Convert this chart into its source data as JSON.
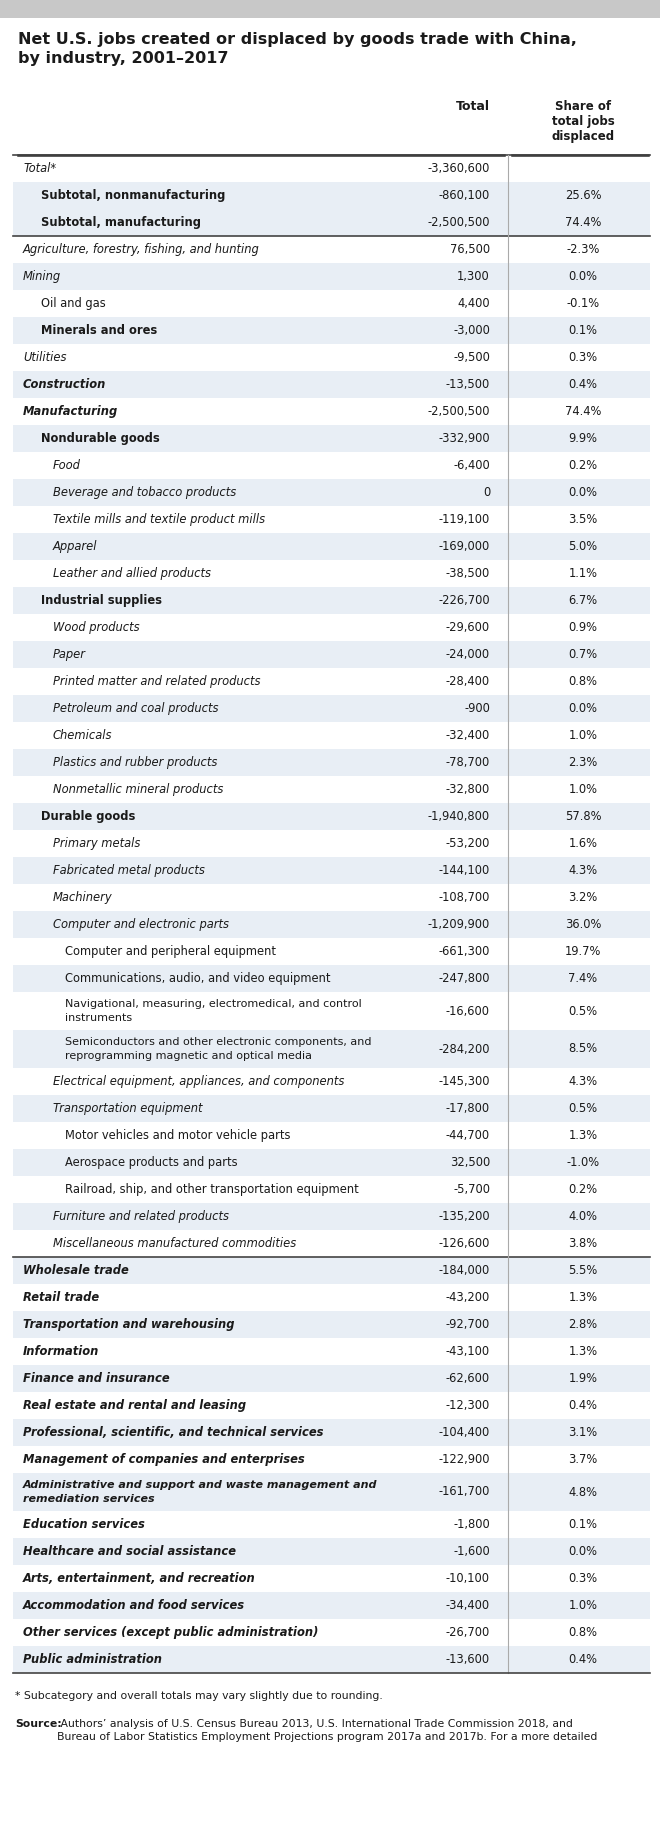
{
  "title": "Net U.S. jobs created or displaced by goods trade with China,\nby industry, 2001–2017",
  "col_total": "Total",
  "col_share": "Share of\ntotal jobs\ndisplaced",
  "footnote1": "* Subcategory and overall totals may vary slightly due to rounding.",
  "footnote2_bold": "Source:",
  "footnote2_rest": " Authors’ analysis of U.S. Census Bureau 2013, U.S. International Trade Commission 2018, and\nBureau of Labor Statistics Employment Projections program 2017a and 2017b. For a more detailed",
  "gray_bar_color": "#c8c8c8",
  "bg_white": "#ffffff",
  "bg_light_blue": "#e8eef5",
  "text_dark": "#1a1a1a",
  "rows": [
    {
      "label": "Total*",
      "total": "-3,360,600",
      "share": "",
      "indent": 0,
      "italic": true,
      "bold": false,
      "bg": "white",
      "border_top": true,
      "border_bottom": false
    },
    {
      "label": "Subtotal, nonmanufacturing",
      "total": "-860,100",
      "share": "25.6%",
      "indent": 1,
      "italic": false,
      "bold": true,
      "bg": "blue",
      "border_top": false,
      "border_bottom": false
    },
    {
      "label": "Subtotal, manufacturing",
      "total": "-2,500,500",
      "share": "74.4%",
      "indent": 1,
      "italic": false,
      "bold": true,
      "bg": "blue",
      "border_top": false,
      "border_bottom": false
    },
    {
      "label": "Agriculture, forestry, fishing, and hunting",
      "total": "76,500",
      "share": "-2.3%",
      "indent": 0,
      "italic": true,
      "bold": false,
      "bg": "white",
      "border_top": true,
      "border_bottom": false
    },
    {
      "label": "Mining",
      "total": "1,300",
      "share": "0.0%",
      "indent": 0,
      "italic": true,
      "bold": false,
      "bg": "blue",
      "border_top": false,
      "border_bottom": false
    },
    {
      "label": "Oil and gas",
      "total": "4,400",
      "share": "-0.1%",
      "indent": 1,
      "italic": false,
      "bold": false,
      "bg": "white",
      "border_top": false,
      "border_bottom": false
    },
    {
      "label": "Minerals and ores",
      "total": "-3,000",
      "share": "0.1%",
      "indent": 1,
      "italic": false,
      "bold": true,
      "bg": "blue",
      "border_top": false,
      "border_bottom": false
    },
    {
      "label": "Utilities",
      "total": "-9,500",
      "share": "0.3%",
      "indent": 0,
      "italic": true,
      "bold": false,
      "bg": "white",
      "border_top": false,
      "border_bottom": false
    },
    {
      "label": "Construction",
      "total": "-13,500",
      "share": "0.4%",
      "indent": 0,
      "italic": true,
      "bold": true,
      "bg": "blue",
      "border_top": false,
      "border_bottom": false
    },
    {
      "label": "Manufacturing",
      "total": "-2,500,500",
      "share": "74.4%",
      "indent": 0,
      "italic": true,
      "bold": true,
      "bg": "white",
      "border_top": false,
      "border_bottom": false
    },
    {
      "label": "Nondurable goods",
      "total": "-332,900",
      "share": "9.9%",
      "indent": 1,
      "italic": false,
      "bold": true,
      "bg": "blue",
      "border_top": false,
      "border_bottom": false
    },
    {
      "label": "Food",
      "total": "-6,400",
      "share": "0.2%",
      "indent": 2,
      "italic": true,
      "bold": false,
      "bg": "white",
      "border_top": false,
      "border_bottom": false
    },
    {
      "label": "Beverage and tobacco products",
      "total": "0",
      "share": "0.0%",
      "indent": 2,
      "italic": true,
      "bold": false,
      "bg": "blue",
      "border_top": false,
      "border_bottom": false
    },
    {
      "label": "Textile mills and textile product mills",
      "total": "-119,100",
      "share": "3.5%",
      "indent": 2,
      "italic": true,
      "bold": false,
      "bg": "white",
      "border_top": false,
      "border_bottom": false
    },
    {
      "label": "Apparel",
      "total": "-169,000",
      "share": "5.0%",
      "indent": 2,
      "italic": true,
      "bold": false,
      "bg": "blue",
      "border_top": false,
      "border_bottom": false
    },
    {
      "label": "Leather and allied products",
      "total": "-38,500",
      "share": "1.1%",
      "indent": 2,
      "italic": true,
      "bold": false,
      "bg": "white",
      "border_top": false,
      "border_bottom": false
    },
    {
      "label": "Industrial supplies",
      "total": "-226,700",
      "share": "6.7%",
      "indent": 1,
      "italic": false,
      "bold": true,
      "bg": "blue",
      "border_top": false,
      "border_bottom": false
    },
    {
      "label": "Wood products",
      "total": "-29,600",
      "share": "0.9%",
      "indent": 2,
      "italic": true,
      "bold": false,
      "bg": "white",
      "border_top": false,
      "border_bottom": false
    },
    {
      "label": "Paper",
      "total": "-24,000",
      "share": "0.7%",
      "indent": 2,
      "italic": true,
      "bold": false,
      "bg": "blue",
      "border_top": false,
      "border_bottom": false
    },
    {
      "label": "Printed matter and related products",
      "total": "-28,400",
      "share": "0.8%",
      "indent": 2,
      "italic": true,
      "bold": false,
      "bg": "white",
      "border_top": false,
      "border_bottom": false
    },
    {
      "label": "Petroleum and coal products",
      "total": "-900",
      "share": "0.0%",
      "indent": 2,
      "italic": true,
      "bold": false,
      "bg": "blue",
      "border_top": false,
      "border_bottom": false
    },
    {
      "label": "Chemicals",
      "total": "-32,400",
      "share": "1.0%",
      "indent": 2,
      "italic": true,
      "bold": false,
      "bg": "white",
      "border_top": false,
      "border_bottom": false
    },
    {
      "label": "Plastics and rubber products",
      "total": "-78,700",
      "share": "2.3%",
      "indent": 2,
      "italic": true,
      "bold": false,
      "bg": "blue",
      "border_top": false,
      "border_bottom": false
    },
    {
      "label": "Nonmetallic mineral products",
      "total": "-32,800",
      "share": "1.0%",
      "indent": 2,
      "italic": true,
      "bold": false,
      "bg": "white",
      "border_top": false,
      "border_bottom": false
    },
    {
      "label": "Durable goods",
      "total": "-1,940,800",
      "share": "57.8%",
      "indent": 1,
      "italic": false,
      "bold": true,
      "bg": "blue",
      "border_top": false,
      "border_bottom": false
    },
    {
      "label": "Primary metals",
      "total": "-53,200",
      "share": "1.6%",
      "indent": 2,
      "italic": true,
      "bold": false,
      "bg": "white",
      "border_top": false,
      "border_bottom": false
    },
    {
      "label": "Fabricated metal products",
      "total": "-144,100",
      "share": "4.3%",
      "indent": 2,
      "italic": true,
      "bold": false,
      "bg": "blue",
      "border_top": false,
      "border_bottom": false
    },
    {
      "label": "Machinery",
      "total": "-108,700",
      "share": "3.2%",
      "indent": 2,
      "italic": true,
      "bold": false,
      "bg": "white",
      "border_top": false,
      "border_bottom": false
    },
    {
      "label": "Computer and electronic parts",
      "total": "-1,209,900",
      "share": "36.0%",
      "indent": 2,
      "italic": true,
      "bold": false,
      "bg": "blue",
      "border_top": false,
      "border_bottom": false
    },
    {
      "label": "Computer and peripheral equipment",
      "total": "-661,300",
      "share": "19.7%",
      "indent": 3,
      "italic": false,
      "bold": false,
      "bg": "white",
      "border_top": false,
      "border_bottom": false
    },
    {
      "label": "Communications, audio, and video equipment",
      "total": "-247,800",
      "share": "7.4%",
      "indent": 3,
      "italic": false,
      "bold": false,
      "bg": "blue",
      "border_top": false,
      "border_bottom": false
    },
    {
      "label": "Navigational, measuring, electromedical, and control\ninstruments",
      "total": "-16,600",
      "share": "0.5%",
      "indent": 3,
      "italic": false,
      "bold": false,
      "bg": "white",
      "border_top": false,
      "border_bottom": false
    },
    {
      "label": "Semiconductors and other electronic components, and\nreprogramming magnetic and optical media",
      "total": "-284,200",
      "share": "8.5%",
      "indent": 3,
      "italic": false,
      "bold": false,
      "bg": "blue",
      "border_top": false,
      "border_bottom": false
    },
    {
      "label": "Electrical equipment, appliances, and components",
      "total": "-145,300",
      "share": "4.3%",
      "indent": 2,
      "italic": true,
      "bold": false,
      "bg": "white",
      "border_top": false,
      "border_bottom": false
    },
    {
      "label": "Transportation equipment",
      "total": "-17,800",
      "share": "0.5%",
      "indent": 2,
      "italic": true,
      "bold": false,
      "bg": "blue",
      "border_top": false,
      "border_bottom": false
    },
    {
      "label": "Motor vehicles and motor vehicle parts",
      "total": "-44,700",
      "share": "1.3%",
      "indent": 3,
      "italic": false,
      "bold": false,
      "bg": "white",
      "border_top": false,
      "border_bottom": false
    },
    {
      "label": "Aerospace products and parts",
      "total": "32,500",
      "share": "-1.0%",
      "indent": 3,
      "italic": false,
      "bold": false,
      "bg": "blue",
      "border_top": false,
      "border_bottom": false
    },
    {
      "label": "Railroad, ship, and other transportation equipment",
      "total": "-5,700",
      "share": "0.2%",
      "indent": 3,
      "italic": false,
      "bold": false,
      "bg": "white",
      "border_top": false,
      "border_bottom": false
    },
    {
      "label": "Furniture and related products",
      "total": "-135,200",
      "share": "4.0%",
      "indent": 2,
      "italic": true,
      "bold": false,
      "bg": "blue",
      "border_top": false,
      "border_bottom": false
    },
    {
      "label": "Miscellaneous manufactured commodities",
      "total": "-126,600",
      "share": "3.8%",
      "indent": 2,
      "italic": true,
      "bold": false,
      "bg": "white",
      "border_top": false,
      "border_bottom": false
    },
    {
      "label": "Wholesale trade",
      "total": "-184,000",
      "share": "5.5%",
      "indent": 0,
      "italic": true,
      "bold": true,
      "bg": "blue",
      "border_top": true,
      "border_bottom": false
    },
    {
      "label": "Retail trade",
      "total": "-43,200",
      "share": "1.3%",
      "indent": 0,
      "italic": true,
      "bold": true,
      "bg": "white",
      "border_top": false,
      "border_bottom": false
    },
    {
      "label": "Transportation and warehousing",
      "total": "-92,700",
      "share": "2.8%",
      "indent": 0,
      "italic": true,
      "bold": true,
      "bg": "blue",
      "border_top": false,
      "border_bottom": false
    },
    {
      "label": "Information",
      "total": "-43,100",
      "share": "1.3%",
      "indent": 0,
      "italic": true,
      "bold": true,
      "bg": "white",
      "border_top": false,
      "border_bottom": false
    },
    {
      "label": "Finance and insurance",
      "total": "-62,600",
      "share": "1.9%",
      "indent": 0,
      "italic": true,
      "bold": true,
      "bg": "blue",
      "border_top": false,
      "border_bottom": false
    },
    {
      "label": "Real estate and rental and leasing",
      "total": "-12,300",
      "share": "0.4%",
      "indent": 0,
      "italic": true,
      "bold": true,
      "bg": "white",
      "border_top": false,
      "border_bottom": false
    },
    {
      "label": "Professional, scientific, and technical services",
      "total": "-104,400",
      "share": "3.1%",
      "indent": 0,
      "italic": true,
      "bold": true,
      "bg": "blue",
      "border_top": false,
      "border_bottom": false
    },
    {
      "label": "Management of companies and enterprises",
      "total": "-122,900",
      "share": "3.7%",
      "indent": 0,
      "italic": true,
      "bold": true,
      "bg": "white",
      "border_top": false,
      "border_bottom": false
    },
    {
      "label": "Administrative and support and waste management and\nremediation services",
      "total": "-161,700",
      "share": "4.8%",
      "indent": 0,
      "italic": true,
      "bold": true,
      "bg": "blue",
      "border_top": false,
      "border_bottom": false
    },
    {
      "label": "Education services",
      "total": "-1,800",
      "share": "0.1%",
      "indent": 0,
      "italic": true,
      "bold": true,
      "bg": "white",
      "border_top": false,
      "border_bottom": false
    },
    {
      "label": "Healthcare and social assistance",
      "total": "-1,600",
      "share": "0.0%",
      "indent": 0,
      "italic": true,
      "bold": true,
      "bg": "blue",
      "border_top": false,
      "border_bottom": false
    },
    {
      "label": "Arts, entertainment, and recreation",
      "total": "-10,100",
      "share": "0.3%",
      "indent": 0,
      "italic": true,
      "bold": true,
      "bg": "white",
      "border_top": false,
      "border_bottom": false
    },
    {
      "label": "Accommodation and food services",
      "total": "-34,400",
      "share": "1.0%",
      "indent": 0,
      "italic": true,
      "bold": true,
      "bg": "blue",
      "border_top": false,
      "border_bottom": false
    },
    {
      "label": "Other services (except public administration)",
      "total": "-26,700",
      "share": "0.8%",
      "indent": 0,
      "italic": true,
      "bold": true,
      "bg": "white",
      "border_top": false,
      "border_bottom": false
    },
    {
      "label": "Public administration",
      "total": "-13,600",
      "share": "0.4%",
      "indent": 0,
      "italic": true,
      "bold": true,
      "bg": "blue",
      "border_top": false,
      "border_bottom": false
    }
  ]
}
